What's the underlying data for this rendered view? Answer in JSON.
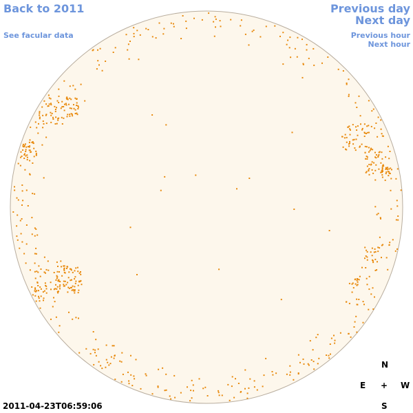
{
  "nav": {
    "back": "Back to 2011",
    "facular": "See facular data",
    "previous_day": "Previous day",
    "next_day": "Next day",
    "previous_hour": "Previous hour",
    "next_hour": "Next hour"
  },
  "compass": {
    "north": "N",
    "east": "E",
    "center": "+",
    "west": "W",
    "south": "S"
  },
  "timestamp": "2011-04-23T06:59:06",
  "colors": {
    "link": "#6d95dc",
    "disk_fill": "#fdf7ec",
    "disk_edge": "#b8ad9e",
    "facula": "#e8890c"
  }
}
